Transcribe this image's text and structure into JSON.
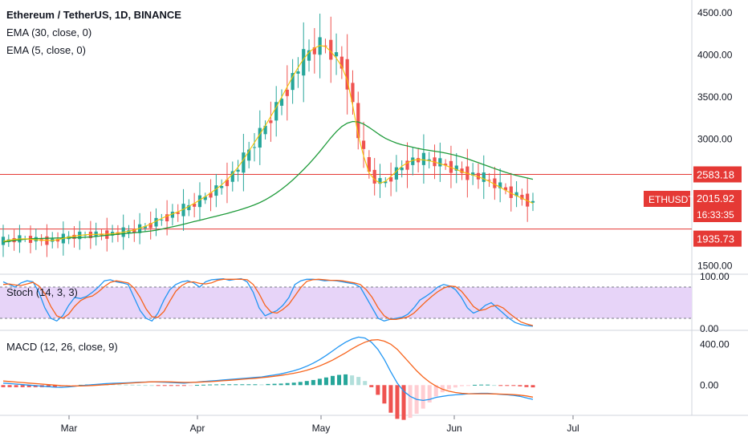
{
  "header": {
    "title": "Ethereum / TetherUS, 1D, BINANCE",
    "ema30_label": "EMA (30, close, 0)",
    "ema5_label": "EMA (5, close, 0)"
  },
  "colors": {
    "up": "#26a69a",
    "down": "#ef5350",
    "ema30": "#1f9b3b",
    "ema5": "#f5c400",
    "hline": "#e53935",
    "stoch_k": "#2196f3",
    "stoch_d": "#f7631b",
    "stoch_band": "#e7d4f8",
    "macd": "#2196f3",
    "signal": "#f7631b",
    "axis_text": "#131722"
  },
  "chart_data": [
    {
      "type": "candlestick",
      "title": "Ethereum / TetherUS, 1D, BINANCE",
      "ylim": [
        1400,
        4650
      ],
      "y_ticks": [
        "4500.00",
        "4000.00",
        "3500.00",
        "3000.00",
        "1500.00"
      ],
      "x_tick_labels": [
        "Mar",
        "Apr",
        "May",
        "Jun",
        "Jul"
      ],
      "series": [
        {
          "name": "EMA (30, close, 0)",
          "values": [
            1780,
            1790,
            1800,
            1808,
            1815,
            1820,
            1822,
            1824,
            1826,
            1828,
            1830,
            1830,
            1831,
            1832,
            1834,
            1838,
            1842,
            1848,
            1855,
            1862,
            1868,
            1874,
            1880,
            1886,
            1892,
            1898,
            1905,
            1912,
            1922,
            1935,
            1948,
            1962,
            1976,
            1992,
            2008,
            2024,
            2040,
            2056,
            2072,
            2088,
            2104,
            2120,
            2138,
            2156,
            2176,
            2198,
            2222,
            2250,
            2282,
            2320,
            2362,
            2408,
            2460,
            2516,
            2576,
            2640,
            2708,
            2780,
            2856,
            2936,
            3016,
            3090,
            3150,
            3190,
            3210,
            3205,
            3180,
            3140,
            3095,
            3050,
            3010,
            2980,
            2955,
            2935,
            2920,
            2905,
            2890,
            2878,
            2868,
            2858,
            2848,
            2836,
            2822,
            2806,
            2788,
            2768,
            2745,
            2722,
            2698,
            2675,
            2652,
            2630,
            2608,
            2588,
            2570,
            2555,
            2540,
            2525
          ]
        },
        {
          "name": "EMA (5, close, 0)",
          "values": [
            1790,
            1802,
            1812,
            1818,
            1820,
            1815,
            1808,
            1805,
            1802,
            1800,
            1810,
            1825,
            1840,
            1852,
            1860,
            1868,
            1872,
            1872,
            1874,
            1876,
            1880,
            1888,
            1898,
            1910,
            1925,
            1945,
            1968,
            1995,
            2030,
            2060,
            2090,
            2115,
            2140,
            2170,
            2205,
            2240,
            2280,
            2320,
            2365,
            2410,
            2460,
            2520,
            2590,
            2670,
            2760,
            2860,
            2960,
            3060,
            3160,
            3270,
            3380,
            3500,
            3620,
            3740,
            3850,
            3950,
            4030,
            4080,
            4110,
            4100,
            4040,
            3960,
            3860,
            3700,
            3400,
            3050,
            2800,
            2600,
            2520,
            2480,
            2500,
            2560,
            2620,
            2680,
            2720,
            2750,
            2760,
            2755,
            2745,
            2730,
            2710,
            2690,
            2665,
            2640,
            2615,
            2595,
            2575,
            2555,
            2530,
            2500,
            2465,
            2430,
            2395,
            2360,
            2330,
            2300,
            2270,
            2240
          ]
        },
        {
          "name": "Horizontal line",
          "values": [
            2583.18
          ]
        },
        {
          "name": "Horizontal line",
          "values": [
            1935.73
          ]
        }
      ],
      "annotations": [
        "ETHUSDT",
        "2583.18",
        "2015.92",
        "16:33:35",
        "1935.73"
      ]
    },
    {
      "type": "line",
      "title": "Stoch (14, 3, 3)",
      "ylim": [
        0,
        100
      ],
      "y_ticks": [
        "100.00",
        "0.00"
      ],
      "series": [
        {
          "name": "%K",
          "values": [
            90,
            85,
            80,
            88,
            92,
            90,
            70,
            40,
            20,
            15,
            25,
            45,
            60,
            58,
            62,
            70,
            80,
            92,
            94,
            90,
            88,
            85,
            60,
            35,
            20,
            15,
            30,
            55,
            75,
            85,
            90,
            92,
            88,
            80,
            90,
            94,
            95,
            96,
            93,
            95,
            96,
            90,
            70,
            40,
            25,
            30,
            35,
            45,
            60,
            85,
            92,
            95,
            95,
            94,
            92,
            93,
            92,
            90,
            88,
            86,
            80,
            60,
            40,
            20,
            15,
            18,
            20,
            22,
            28,
            40,
            55,
            62,
            70,
            80,
            85,
            82,
            75,
            60,
            40,
            30,
            35,
            45,
            50,
            40,
            30,
            20,
            12,
            8,
            6,
            5
          ]
        },
        {
          "name": "%D",
          "values": [
            85,
            86,
            84,
            83,
            86,
            89,
            82,
            67,
            43,
            25,
            20,
            28,
            43,
            54,
            60,
            63,
            71,
            81,
            89,
            92,
            90,
            88,
            78,
            60,
            38,
            23,
            22,
            33,
            53,
            72,
            83,
            89,
            90,
            87,
            86,
            88,
            93,
            95,
            95,
            95,
            95,
            94,
            85,
            67,
            45,
            32,
            30,
            37,
            47,
            63,
            79,
            91,
            94,
            95,
            94,
            93,
            93,
            92,
            90,
            88,
            85,
            75,
            60,
            40,
            25,
            18,
            18,
            20,
            23,
            30,
            41,
            52,
            62,
            71,
            78,
            82,
            81,
            72,
            58,
            43,
            35,
            37,
            43,
            45,
            40,
            30,
            21,
            13,
            9,
            6
          ]
        }
      ]
    },
    {
      "type": "bar+line",
      "title": "MACD (12, 26, close, 9)",
      "ylim": [
        -280,
        520
      ],
      "y_ticks": [
        "400.00",
        "0.00"
      ],
      "series": [
        {
          "name": "MACD",
          "values": [
            20,
            15,
            10,
            5,
            0,
            -5,
            -10,
            -15,
            -20,
            -22,
            -18,
            -12,
            -5,
            0,
            5,
            10,
            15,
            18,
            20,
            22,
            25,
            28,
            30,
            32,
            30,
            28,
            25,
            22,
            20,
            25,
            30,
            35,
            40,
            45,
            50,
            55,
            60,
            65,
            70,
            75,
            80,
            90,
            100,
            110,
            125,
            140,
            160,
            185,
            215,
            250,
            290,
            335,
            380,
            420,
            450,
            470,
            460,
            420,
            350,
            250,
            130,
            20,
            -60,
            -110,
            -140,
            -150,
            -140,
            -120,
            -110,
            -100,
            -95,
            -90,
            -85,
            -82,
            -80,
            -80,
            -85,
            -90,
            -95,
            -100,
            -110,
            -125,
            -140
          ]
        },
        {
          "name": "Signal",
          "values": [
            40,
            35,
            30,
            25,
            20,
            15,
            10,
            5,
            0,
            -5,
            -8,
            -9,
            -8,
            -6,
            -3,
            1,
            5,
            9,
            13,
            17,
            21,
            25,
            29,
            32,
            33,
            33,
            31,
            29,
            27,
            27,
            28,
            31,
            34,
            38,
            42,
            47,
            52,
            57,
            62,
            67,
            73,
            79,
            87,
            95,
            105,
            116,
            129,
            145,
            165,
            188,
            215,
            245,
            280,
            315,
            355,
            390,
            420,
            440,
            445,
            430,
            400,
            350,
            280,
            210,
            140,
            80,
            30,
            -10,
            -40,
            -60,
            -72,
            -80,
            -84,
            -85,
            -85,
            -85,
            -86,
            -88,
            -90,
            -93,
            -98,
            -106,
            -118
          ]
        }
      ]
    }
  ]
}
